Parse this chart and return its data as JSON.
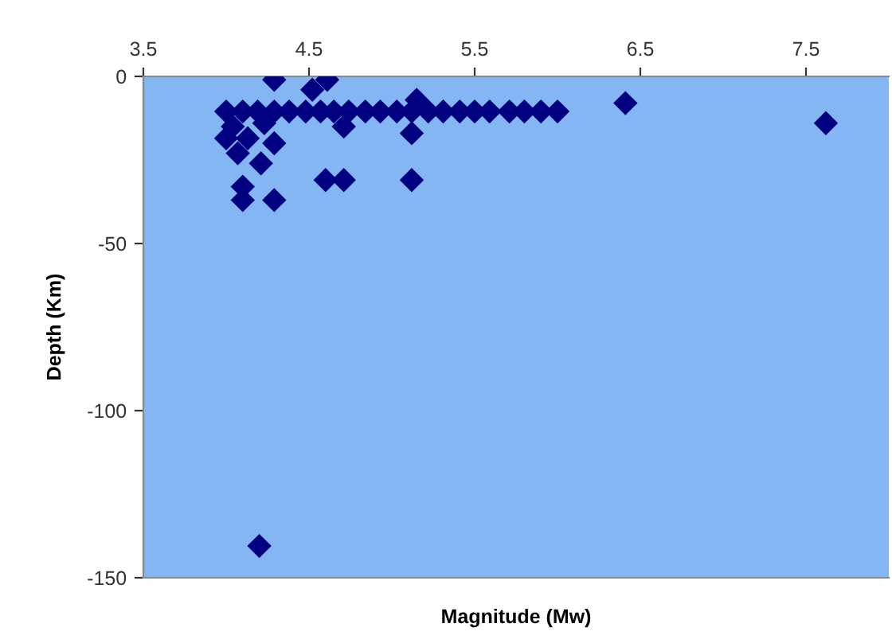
{
  "chart_data": {
    "type": "scatter",
    "xlabel": "Magnitude (Mw)",
    "ylabel": "Depth (Km)",
    "x": [
      4.29,
      4.61,
      4.52,
      4.0,
      4.1,
      4.19,
      4.29,
      4.38,
      4.48,
      4.57,
      4.65,
      4.74,
      4.84,
      4.93,
      5.03,
      5.12,
      5.22,
      5.31,
      5.41,
      5.5,
      5.59,
      5.71,
      5.8,
      5.9,
      6.0,
      6.41,
      7.62,
      4.0,
      4.04,
      4.13,
      4.23,
      4.29,
      4.07,
      4.21,
      4.71,
      5.12,
      5.15,
      4.6,
      4.71,
      5.12,
      4.1,
      4.1,
      4.29,
      4.2
    ],
    "values": [
      -1,
      -1,
      -4,
      -10.5,
      -10.5,
      -10.5,
      -10.5,
      -10.5,
      -10.5,
      -10.5,
      -10.5,
      -10.5,
      -10.5,
      -10.5,
      -10.5,
      -10.5,
      -10.5,
      -10.5,
      -10.5,
      -10.5,
      -10.5,
      -10.5,
      -10.5,
      -10.5,
      -10.5,
      -8,
      -14,
      -18.5,
      -15,
      -18.5,
      -14,
      -20,
      -23,
      -26,
      -15,
      -17,
      -7,
      -31,
      -31,
      -31,
      -33,
      -37,
      -37,
      -140.5
    ],
    "color": "#000080",
    "marker": "diamond",
    "xlim": [
      3.5,
      8.0
    ],
    "xticks": [
      3.5,
      4.5,
      5.5,
      6.5,
      7.5
    ],
    "ylim": [
      -150,
      0
    ],
    "yticks": [
      -150,
      -100,
      -50,
      0
    ],
    "grid": false,
    "legend": false
  }
}
